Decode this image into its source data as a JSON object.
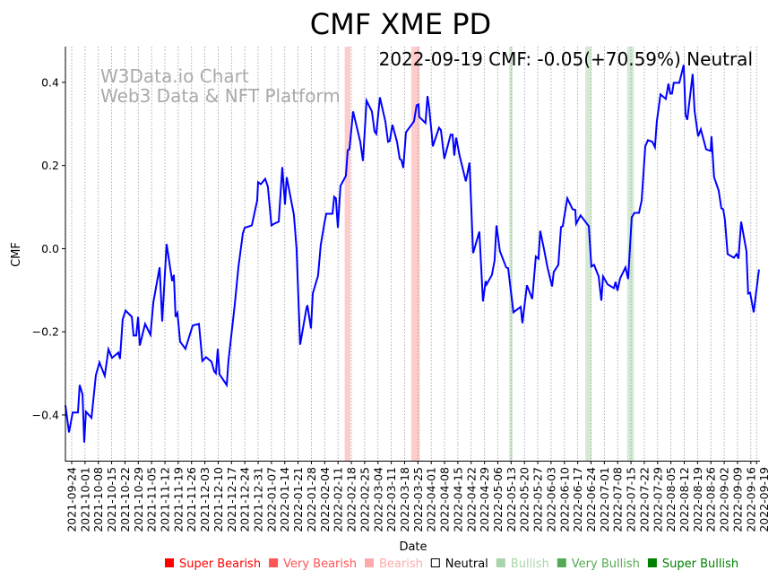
{
  "chart_data": {
    "type": "line",
    "title": "CMF XME PD",
    "annotation": "2022-09-19 CMF: -0.05(+70.59%) Neutral",
    "watermark": [
      "W3Data.io Chart",
      "Web3 Data & NFT Platform"
    ],
    "xlabel": "Date",
    "ylabel": "CMF",
    "start_date": "2021-09-24",
    "xlim_days": [
      -3.3,
      361.8
    ],
    "ylim": [
      -0.51,
      0.486
    ],
    "yticks": [
      -0.4,
      -0.2,
      0.0,
      0.2,
      0.4
    ],
    "ytick_labels": [
      "−0.4",
      "−0.2",
      "0.0",
      "0.2",
      "0.4"
    ],
    "xtick_labels": [
      "2021-09-24",
      "2021-10-01",
      "2021-10-08",
      "2021-10-15",
      "2021-10-22",
      "2021-10-29",
      "2021-11-05",
      "2021-11-12",
      "2021-11-19",
      "2021-11-26",
      "2021-12-03",
      "2021-12-10",
      "2021-12-17",
      "2021-12-24",
      "2021-12-31",
      "2022-01-07",
      "2022-01-14",
      "2022-01-21",
      "2022-01-28",
      "2022-02-04",
      "2022-02-11",
      "2022-02-18",
      "2022-02-25",
      "2022-03-04",
      "2022-03-11",
      "2022-03-18",
      "2022-03-25",
      "2022-04-01",
      "2022-04-08",
      "2022-04-15",
      "2022-04-22",
      "2022-04-29",
      "2022-05-06",
      "2022-05-13",
      "2022-05-20",
      "2022-05-27",
      "2022-06-03",
      "2022-06-10",
      "2022-06-17",
      "2022-06-24",
      "2022-07-01",
      "2022-07-08",
      "2022-07-15",
      "2022-07-22",
      "2022-07-29",
      "2022-08-05",
      "2022-08-12",
      "2022-08-19",
      "2022-08-26",
      "2022-09-02",
      "2022-09-09",
      "2022-09-16",
      "2022-09-19"
    ],
    "grid": "x-dotted",
    "series": [
      {
        "name": "CMF",
        "color": "#0000ff",
        "day_offsets": [
          -3.3,
          -1.4,
          0.5,
          3.3,
          4.2,
          5.7,
          6.6,
          7.5,
          10.4,
          12.7,
          14.6,
          17.4,
          19.3,
          21.2,
          24.5,
          25.4,
          26.8,
          28.3,
          31.6,
          32.5,
          33.9,
          34.9,
          35.8,
          38.6,
          41.4,
          42.9,
          46.2,
          47.6,
          49.9,
          52.8,
          53.7,
          54.6,
          55.6,
          57.0,
          59.8,
          63.6,
          66.9,
          68.7,
          70.6,
          73.5,
          74.9,
          75.8,
          76.8,
          77.7,
          81.5,
          82.4,
          85.7,
          87.6,
          90.0,
          90.9,
          94.7,
          97.5,
          98.0,
          99.4,
          101.7,
          103.1,
          105.0,
          106.4,
          108.8,
          110.7,
          112.1,
          113.0,
          116.8,
          118.2,
          120.1,
          123.4,
          123.9,
          125.8,
          126.7,
          129.5,
          130.9,
          132.8,
          133.8,
          137.1,
          138.0,
          138.9,
          139.9,
          141.3,
          144.1,
          145.1,
          146.0,
          147.9,
          151.7,
          153.1,
          155.0,
          157.8,
          159.2,
          160.1,
          162.0,
          164.9,
          166.3,
          167.2,
          168.6,
          171.0,
          172.4,
          173.3,
          174.3,
          175.7,
          179.9,
          181.3,
          182.3,
          182.7,
          186.0,
          187.0,
          187.9,
          189.3,
          189.8,
          193.1,
          194.1,
          195.9,
          199.2,
          200.2,
          201.1,
          202.1,
          203.9,
          207.2,
          209.1,
          211.0,
          214.3,
          216.2,
          217.6,
          218.1,
          220.9,
          222.3,
          223.3,
          225.1,
          228.4,
          229.4,
          232.2,
          236.0,
          236.9,
          239.3,
          242.1,
          244.0,
          245.4,
          246.3,
          248.2,
          250.1,
          252.5,
          253.4,
          255.8,
          257.2,
          258.1,
          260.5,
          263.3,
          264.7,
          265.2,
          267.5,
          271.8,
          273.2,
          274.6,
          277.0,
          278.4,
          279.3,
          281.7,
          285.0,
          285.9,
          286.9,
          288.3,
          291.1,
          292.5,
          294.4,
          295.8,
          298.2,
          299.6,
          301.5,
          302.9,
          305.2,
          306.6,
          307.6,
          309.5,
          312.3,
          313.7,
          314.6,
          315.6,
          316.5,
          319.4,
          321.7,
          322.7,
          323.6,
          326.4,
          327.4,
          329.3,
          330.7,
          333.5,
          335.9,
          336.3,
          337.7,
          340.1,
          341.5,
          342.5,
          343.4,
          344.8,
          348.1,
          349.5,
          350.5,
          351.9,
          354.7,
          355.6,
          356.6,
          358.5,
          361.3
        ],
        "values": [
          -0.377,
          -0.442,
          -0.394,
          -0.394,
          -0.328,
          -0.351,
          -0.466,
          -0.392,
          -0.407,
          -0.304,
          -0.274,
          -0.306,
          -0.242,
          -0.263,
          -0.25,
          -0.265,
          -0.17,
          -0.149,
          -0.164,
          -0.209,
          -0.209,
          -0.164,
          -0.233,
          -0.181,
          -0.207,
          -0.129,
          -0.045,
          -0.175,
          0.011,
          -0.078,
          -0.063,
          -0.164,
          -0.155,
          -0.224,
          -0.241,
          -0.185,
          -0.181,
          -0.27,
          -0.261,
          -0.272,
          -0.295,
          -0.3,
          -0.241,
          -0.302,
          -0.328,
          -0.27,
          -0.136,
          -0.045,
          0.037,
          0.05,
          0.056,
          0.116,
          0.16,
          0.155,
          0.168,
          0.149,
          0.056,
          0.06,
          0.065,
          0.196,
          0.106,
          0.172,
          0.082,
          0.0,
          -0.231,
          -0.144,
          -0.136,
          -0.192,
          -0.108,
          -0.065,
          0.009,
          0.06,
          0.084,
          0.084,
          0.125,
          0.121,
          0.05,
          0.151,
          0.175,
          0.237,
          0.239,
          0.33,
          0.257,
          0.211,
          0.356,
          0.33,
          0.282,
          0.276,
          0.364,
          0.306,
          0.257,
          0.259,
          0.298,
          0.257,
          0.216,
          0.213,
          0.194,
          0.28,
          0.306,
          0.345,
          0.347,
          0.317,
          0.302,
          0.367,
          0.338,
          0.274,
          0.246,
          0.291,
          0.285,
          0.216,
          0.274,
          0.274,
          0.224,
          0.267,
          0.224,
          0.162,
          0.207,
          -0.011,
          0.041,
          -0.127,
          -0.078,
          -0.086,
          -0.063,
          -0.028,
          0.056,
          -0.006,
          -0.045,
          -0.047,
          -0.153,
          -0.14,
          -0.179,
          -0.088,
          -0.121,
          -0.019,
          -0.024,
          0.043,
          0.0,
          -0.045,
          -0.091,
          -0.056,
          -0.039,
          0.052,
          0.054,
          0.121,
          0.095,
          0.093,
          0.06,
          0.08,
          0.054,
          -0.043,
          -0.039,
          -0.067,
          -0.125,
          -0.067,
          -0.086,
          -0.095,
          -0.08,
          -0.101,
          -0.071,
          -0.045,
          -0.073,
          0.075,
          0.086,
          0.086,
          0.116,
          0.246,
          0.261,
          0.257,
          0.244,
          0.306,
          0.371,
          0.36,
          0.397,
          0.373,
          0.373,
          0.399,
          0.399,
          0.442,
          0.321,
          0.31,
          0.42,
          0.332,
          0.27,
          0.287,
          0.239,
          0.235,
          0.27,
          0.172,
          0.14,
          0.097,
          0.095,
          0.069,
          -0.013,
          -0.022,
          -0.013,
          -0.024,
          0.065,
          -0.006,
          -0.108,
          -0.106,
          -0.153,
          -0.05
        ]
      }
    ],
    "bands": [
      {
        "start_day": 143.5,
        "end_day": 146.5,
        "sentiment": "Bearish",
        "color": "#ffcccc"
      },
      {
        "start_day": 178.5,
        "end_day": 183.0,
        "sentiment": "Bearish",
        "color": "#ffcccc"
      },
      {
        "start_day": 230.0,
        "end_day": 231.8,
        "sentiment": "Bullish",
        "color": "#d4ead4"
      },
      {
        "start_day": 270.0,
        "end_day": 273.2,
        "sentiment": "Bullish",
        "color": "#d4ead4"
      },
      {
        "start_day": 292.0,
        "end_day": 295.5,
        "sentiment": "Bullish",
        "color": "#d4ead4"
      }
    ],
    "legend": {
      "placement": "bottom-right",
      "items": [
        {
          "label": "Super Bearish",
          "color": "#ff0000",
          "filled": true
        },
        {
          "label": "Very Bearish",
          "color": "#ff5555",
          "filled": true
        },
        {
          "label": "Bearish",
          "color": "#ffaaaa",
          "filled": true
        },
        {
          "label": "Neutral",
          "color": "#000000",
          "filled": false
        },
        {
          "label": "Bullish",
          "color": "#aad4aa",
          "filled": true
        },
        {
          "label": "Very Bullish",
          "color": "#55aa55",
          "filled": true
        },
        {
          "label": "Super Bullish",
          "color": "#008000",
          "filled": true
        }
      ]
    }
  }
}
